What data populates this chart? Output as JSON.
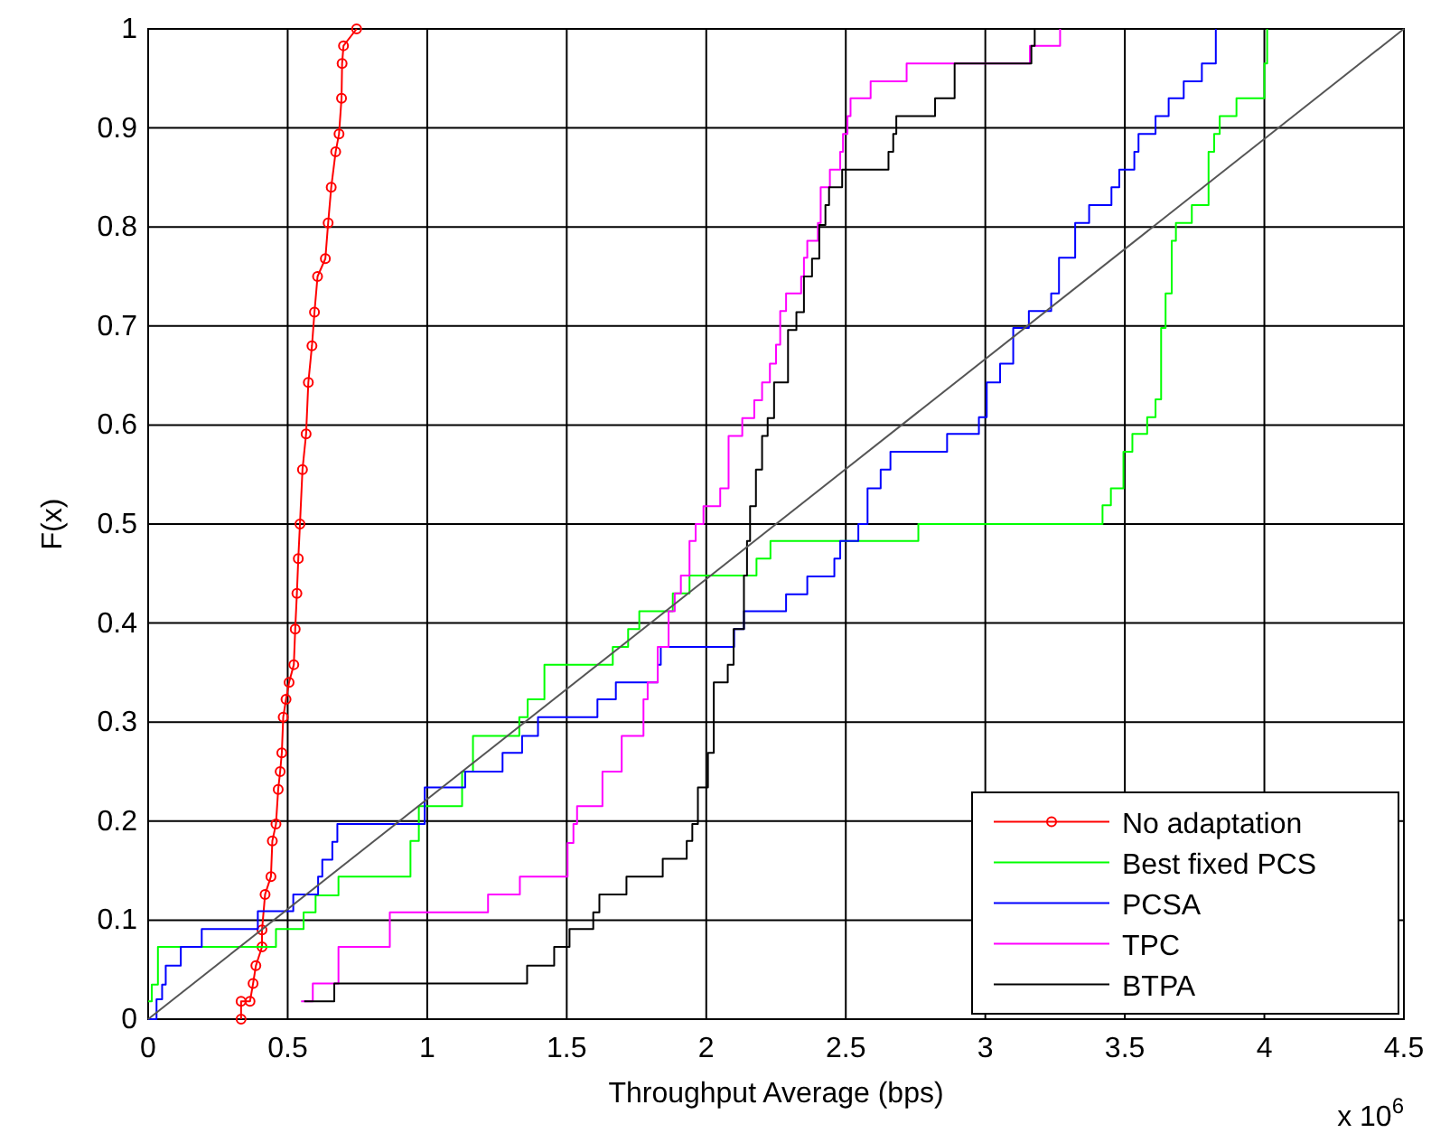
{
  "chart_data": {
    "type": "step",
    "xlabel": "Throughput Average (bps)",
    "ylabel": "F(x)",
    "annotations": [
      "x 10$^{6}$"
    ],
    "xlim": [
      0,
      4.5
    ],
    "xticks": [
      0,
      0.5,
      1,
      1.5,
      2,
      2.5,
      3,
      3.5,
      4,
      4.5
    ],
    "ylim": [
      0,
      1
    ],
    "yticks": [
      0,
      0.1,
      0.2,
      0.3,
      0.4,
      0.5,
      0.6,
      0.7,
      0.8,
      0.9,
      1
    ],
    "grid": true,
    "legend": "bottom right",
    "series": [
      {
        "name": "No adaptation",
        "type": "line",
        "marker": "circle",
        "color": "#ff0000",
        "x": [
          0.333,
          0.333,
          0.365,
          0.376,
          0.386,
          0.408,
          0.408,
          0.419,
          0.44,
          0.445,
          0.458,
          0.466,
          0.473,
          0.479,
          0.484,
          0.494,
          0.505,
          0.522,
          0.527,
          0.533,
          0.538,
          0.544,
          0.553,
          0.566,
          0.574,
          0.587,
          0.596,
          0.607,
          0.635,
          0.645,
          0.656,
          0.672,
          0.684,
          0.693,
          0.695,
          0.7,
          0.747
        ],
        "values": [
          0,
          0.018,
          0.018,
          0.036,
          0.054,
          0.073,
          0.09,
          0.126,
          0.144,
          0.18,
          0.197,
          0.232,
          0.25,
          0.269,
          0.305,
          0.323,
          0.34,
          0.358,
          0.394,
          0.43,
          0.465,
          0.5,
          0.555,
          0.591,
          0.643,
          0.68,
          0.714,
          0.75,
          0.768,
          0.804,
          0.84,
          0.876,
          0.894,
          0.93,
          0.965,
          0.983,
          1
        ]
      },
      {
        "name": "Best fixed PCS",
        "color": "#00ff00",
        "x": [
          0,
          0.013,
          0.035,
          0.458,
          0.557,
          0.6,
          0.682,
          0.94,
          0.97,
          1.125,
          1.164,
          1.33,
          1.36,
          1.42,
          1.665,
          1.72,
          1.76,
          1.88,
          1.94,
          2.18,
          2.23,
          2.76,
          3.42,
          3.45,
          3.495,
          3.527,
          3.58,
          3.61,
          3.63,
          3.646,
          3.668,
          3.683,
          3.74,
          3.8,
          3.82,
          3.84,
          3.9,
          4.0,
          4.01
        ],
        "values": [
          0.018,
          0.035,
          0.073,
          0.091,
          0.108,
          0.125,
          0.144,
          0.18,
          0.215,
          0.25,
          0.286,
          0.305,
          0.323,
          0.358,
          0.376,
          0.394,
          0.412,
          0.43,
          0.448,
          0.465,
          0.483,
          0.5,
          0.519,
          0.536,
          0.573,
          0.591,
          0.608,
          0.626,
          0.698,
          0.733,
          0.786,
          0.804,
          0.822,
          0.876,
          0.894,
          0.912,
          0.93,
          0.965,
          1
        ]
      },
      {
        "name": "PCSA",
        "color": "#0000ff",
        "x": [
          0,
          0.03,
          0.05,
          0.063,
          0.117,
          0.192,
          0.393,
          0.52,
          0.609,
          0.624,
          0.66,
          0.678,
          0.991,
          1.136,
          1.27,
          1.34,
          1.397,
          1.61,
          1.676,
          1.826,
          1.837,
          2.1,
          2.135,
          2.286,
          2.362,
          2.459,
          2.48,
          2.545,
          2.578,
          2.625,
          2.66,
          2.863,
          2.977,
          3.005,
          3.053,
          3.1,
          3.156,
          3.236,
          3.264,
          3.322,
          3.372,
          3.452,
          3.48,
          3.534,
          3.549,
          3.61,
          3.657,
          3.711,
          3.776,
          3.826
        ],
        "values": [
          0,
          0.02,
          0.035,
          0.054,
          0.073,
          0.091,
          0.109,
          0.126,
          0.144,
          0.161,
          0.179,
          0.197,
          0.234,
          0.25,
          0.269,
          0.286,
          0.305,
          0.323,
          0.34,
          0.358,
          0.376,
          0.394,
          0.412,
          0.429,
          0.447,
          0.465,
          0.483,
          0.5,
          0.536,
          0.555,
          0.573,
          0.591,
          0.608,
          0.643,
          0.662,
          0.698,
          0.715,
          0.733,
          0.769,
          0.804,
          0.822,
          0.84,
          0.858,
          0.876,
          0.894,
          0.912,
          0.93,
          0.947,
          0.965,
          1
        ]
      },
      {
        "name": "TPC",
        "color": "#ff00ff",
        "x": [
          0.548,
          0.59,
          0.682,
          0.866,
          1.218,
          1.332,
          1.503,
          1.524,
          1.537,
          1.628,
          1.697,
          1.775,
          1.79,
          1.826,
          1.865,
          1.887,
          1.909,
          1.94,
          1.962,
          1.99,
          2.05,
          2.08,
          2.129,
          2.172,
          2.2,
          2.228,
          2.25,
          2.265,
          2.286,
          2.34,
          2.35,
          2.362,
          2.4,
          2.41,
          2.443,
          2.48,
          2.49,
          2.506,
          2.517,
          2.589,
          2.718,
          3.16,
          3.268
        ],
        "values": [
          0.018,
          0.036,
          0.073,
          0.108,
          0.126,
          0.144,
          0.178,
          0.197,
          0.215,
          0.25,
          0.286,
          0.323,
          0.34,
          0.376,
          0.412,
          0.43,
          0.448,
          0.483,
          0.5,
          0.518,
          0.536,
          0.589,
          0.607,
          0.625,
          0.643,
          0.662,
          0.681,
          0.715,
          0.733,
          0.75,
          0.769,
          0.786,
          0.804,
          0.84,
          0.858,
          0.876,
          0.894,
          0.912,
          0.93,
          0.947,
          0.965,
          0.983,
          1
        ]
      },
      {
        "name": "BTPA",
        "color": "#000000",
        "x": [
          0.559,
          0.667,
          1.358,
          1.455,
          1.51,
          1.595,
          1.617,
          1.714,
          1.844,
          1.93,
          1.95,
          1.97,
          2.006,
          2.027,
          2.077,
          2.098,
          2.135,
          2.146,
          2.157,
          2.178,
          2.2,
          2.22,
          2.243,
          2.293,
          2.323,
          2.35,
          2.379,
          2.405,
          2.427,
          2.44,
          2.487,
          2.653,
          2.67,
          2.681,
          2.82,
          2.89,
          3.165,
          3.177
        ],
        "values": [
          0.018,
          0.036,
          0.054,
          0.073,
          0.091,
          0.108,
          0.126,
          0.144,
          0.162,
          0.18,
          0.197,
          0.234,
          0.269,
          0.34,
          0.358,
          0.394,
          0.448,
          0.483,
          0.518,
          0.555,
          0.589,
          0.607,
          0.643,
          0.696,
          0.714,
          0.75,
          0.768,
          0.802,
          0.822,
          0.84,
          0.858,
          0.876,
          0.894,
          0.912,
          0.93,
          0.965,
          0.983,
          1
        ]
      },
      {
        "type": "line",
        "color": "#555555",
        "x": [
          0,
          4.5
        ],
        "values": [
          0,
          1
        ]
      }
    ]
  }
}
